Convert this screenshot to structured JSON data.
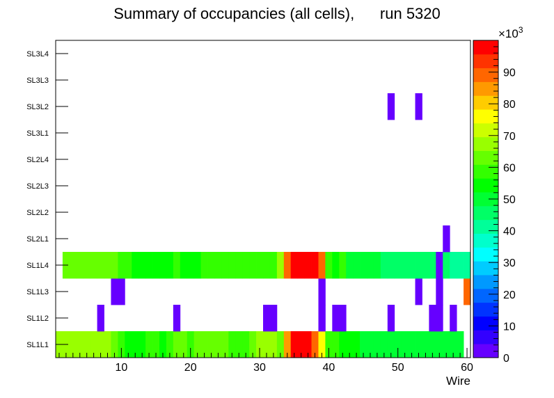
{
  "chart_data": {
    "type": "heatmap",
    "title": "Summary of occupancies (all cells),      run 5320",
    "xlabel": "Wire",
    "ylabel": "",
    "xlim": [
      0.5,
      60.5
    ],
    "x_ticks": [
      10,
      20,
      30,
      40,
      50,
      60
    ],
    "y_categories": [
      "SL1L1",
      "SL1L2",
      "SL1L3",
      "SL1L4",
      "SL2L1",
      "SL2L2",
      "SL2L3",
      "SL2L4",
      "SL3L1",
      "SL3L2",
      "SL3L3",
      "SL3L4"
    ],
    "zlim": [
      0,
      100000
    ],
    "z_ticks": [
      0,
      10,
      20,
      30,
      40,
      50,
      60,
      70,
      80,
      90
    ],
    "z_multiplier": "×10",
    "z_exponent": "3",
    "palette": [
      "#6600ff",
      "#3300ff",
      "#0000ff",
      "#0033ff",
      "#0066ff",
      "#0099ff",
      "#00ccff",
      "#00ffff",
      "#00ffcc",
      "#00ff99",
      "#00ff66",
      "#00ff33",
      "#00ff00",
      "#33ff00",
      "#66ff00",
      "#99ff00",
      "#ccff00",
      "#ffff00",
      "#ffcc00",
      "#ff9900",
      "#ff6600",
      "#ff3300",
      "#ff0000"
    ],
    "rows": [
      {
        "layer": "SL1L1",
        "values": [
          68000,
          68000,
          68000,
          68000,
          68000,
          68000,
          68000,
          68000,
          63000,
          58000,
          55000,
          55000,
          55000,
          58000,
          58000,
          55000,
          58000,
          61000,
          61000,
          58000,
          65000,
          65000,
          65000,
          65000,
          65000,
          58000,
          58000,
          58000,
          63000,
          68000,
          68000,
          68000,
          65000,
          85000,
          98000,
          98000,
          98000,
          88000,
          75000,
          58000,
          58000,
          56000,
          56000,
          56000,
          52000,
          50000,
          50000,
          50000,
          50000,
          50000,
          50000,
          50000,
          50000,
          52000,
          52000,
          50000,
          50000,
          50000,
          50000,
          null
        ]
      },
      {
        "layer": "SL1L2",
        "values": [
          null,
          null,
          null,
          null,
          null,
          null,
          4000,
          null,
          null,
          null,
          null,
          null,
          null,
          null,
          null,
          null,
          null,
          4000,
          null,
          null,
          null,
          null,
          null,
          null,
          null,
          null,
          null,
          null,
          null,
          null,
          4000,
          4000,
          null,
          null,
          null,
          null,
          null,
          null,
          4000,
          null,
          4000,
          4000,
          null,
          null,
          null,
          null,
          null,
          null,
          4000,
          null,
          null,
          null,
          null,
          null,
          4000,
          4000,
          null,
          4000,
          null,
          null
        ]
      },
      {
        "layer": "SL1L3",
        "values": [
          null,
          null,
          null,
          null,
          null,
          null,
          null,
          null,
          4000,
          4000,
          null,
          null,
          null,
          null,
          null,
          null,
          null,
          null,
          null,
          null,
          null,
          null,
          null,
          null,
          null,
          null,
          null,
          null,
          null,
          null,
          null,
          null,
          null,
          null,
          null,
          null,
          null,
          null,
          4000,
          null,
          null,
          null,
          null,
          null,
          null,
          null,
          null,
          null,
          null,
          null,
          null,
          null,
          4000,
          null,
          null,
          4000,
          null,
          null,
          null,
          87000
        ]
      },
      {
        "layer": "SL1L4",
        "values": [
          null,
          65000,
          65000,
          65000,
          65000,
          65000,
          61000,
          65000,
          65000,
          58000,
          58000,
          55000,
          53000,
          53000,
          55000,
          55000,
          55000,
          58000,
          56000,
          56000,
          56000,
          58000,
          58000,
          58000,
          58000,
          58000,
          60000,
          60000,
          58000,
          58000,
          58000,
          58000,
          67000,
          87000,
          98000,
          98000,
          98000,
          98000,
          88000,
          58000,
          55000,
          58000,
          50000,
          50000,
          50000,
          50000,
          50000,
          46000,
          46000,
          46000,
          46000,
          46000,
          46000,
          46000,
          46000,
          4000,
          45000,
          43000,
          43000,
          43000
        ]
      },
      {
        "layer": "SL2L1",
        "values": [
          null,
          null,
          null,
          null,
          null,
          null,
          null,
          null,
          null,
          null,
          null,
          null,
          null,
          null,
          null,
          null,
          null,
          null,
          null,
          null,
          null,
          null,
          null,
          null,
          null,
          null,
          null,
          null,
          null,
          null,
          null,
          null,
          null,
          null,
          null,
          null,
          null,
          null,
          null,
          null,
          null,
          null,
          null,
          null,
          null,
          null,
          null,
          null,
          null,
          null,
          null,
          null,
          null,
          null,
          null,
          null,
          4000,
          null,
          null,
          null
        ]
      },
      {
        "layer": "SL2L2",
        "values": []
      },
      {
        "layer": "SL2L3",
        "values": []
      },
      {
        "layer": "SL2L4",
        "values": []
      },
      {
        "layer": "SL3L1",
        "values": []
      },
      {
        "layer": "SL3L2",
        "values": [
          null,
          null,
          null,
          null,
          null,
          null,
          null,
          null,
          null,
          null,
          null,
          null,
          null,
          null,
          null,
          null,
          null,
          null,
          null,
          null,
          null,
          null,
          null,
          null,
          null,
          null,
          null,
          null,
          null,
          null,
          null,
          null,
          null,
          null,
          null,
          null,
          null,
          null,
          null,
          null,
          null,
          null,
          null,
          null,
          null,
          null,
          null,
          null,
          4000,
          null,
          null,
          null,
          4000,
          null,
          null,
          null,
          null,
          null,
          null,
          null
        ]
      },
      {
        "layer": "SL3L3",
        "values": []
      },
      {
        "layer": "SL3L4",
        "values": []
      }
    ]
  }
}
